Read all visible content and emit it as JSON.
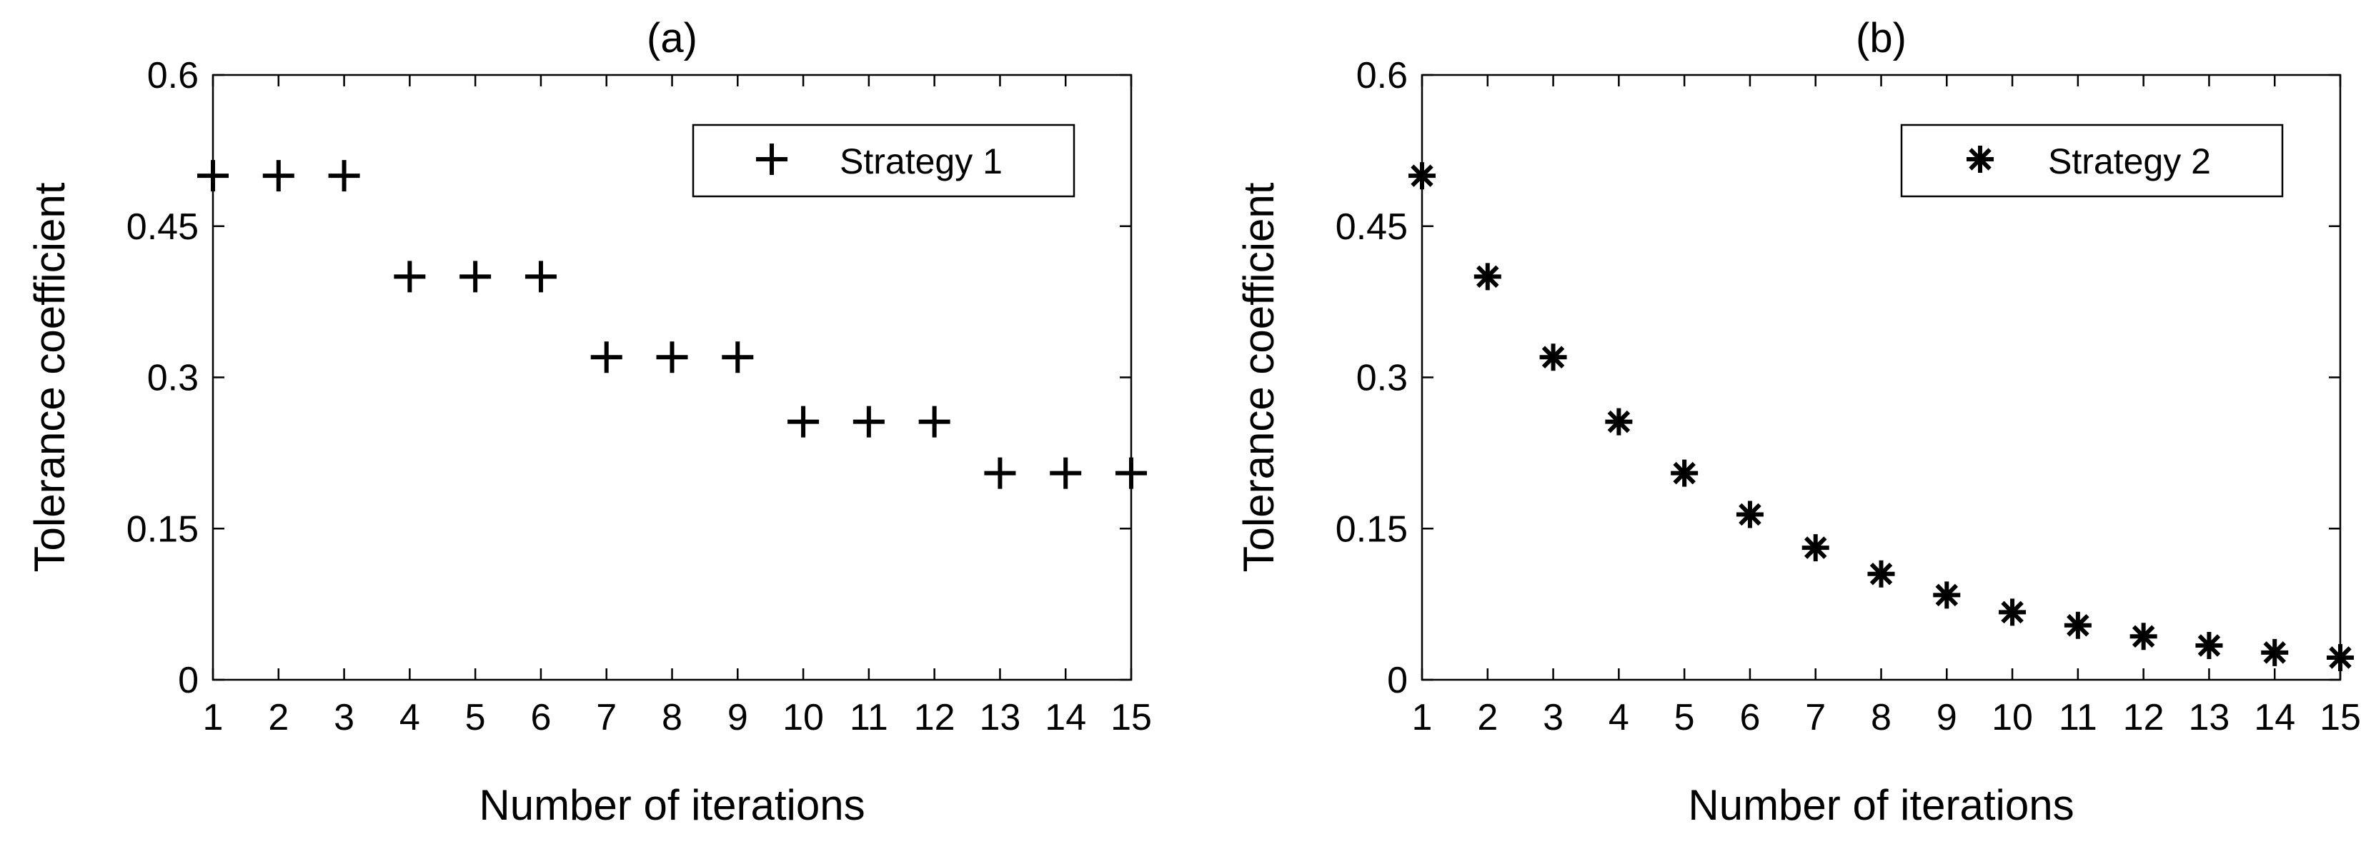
{
  "chart_data": [
    {
      "type": "scatter",
      "title": "(a)",
      "xlabel": "Number of iterations",
      "ylabel": "Tolerance coefficient",
      "xlim": [
        1,
        15
      ],
      "ylim": [
        0,
        0.6
      ],
      "xticks": [
        1,
        2,
        3,
        4,
        5,
        6,
        7,
        8,
        9,
        10,
        11,
        12,
        13,
        14,
        15
      ],
      "xticklabels": [
        "1",
        "2",
        "3",
        "4",
        "5",
        "6",
        "7",
        "8",
        "9",
        "10",
        "11",
        "12",
        "13",
        "14",
        "15"
      ],
      "yticks": [
        0,
        0.15,
        0.3,
        0.45,
        0.6
      ],
      "yticklabels": [
        "0",
        "0.15",
        "0.3",
        "0.45",
        "0.6"
      ],
      "grid": false,
      "legend_position": "top-right",
      "series": [
        {
          "name": "Strategy 1",
          "marker": "plus",
          "color": "#000000",
          "x": [
            1,
            2,
            3,
            4,
            5,
            6,
            7,
            8,
            9,
            10,
            11,
            12,
            13,
            14,
            15
          ],
          "y": [
            0.5,
            0.5,
            0.5,
            0.4,
            0.4,
            0.4,
            0.32,
            0.32,
            0.32,
            0.256,
            0.256,
            0.256,
            0.205,
            0.205,
            0.205
          ]
        }
      ]
    },
    {
      "type": "scatter",
      "title": "(b)",
      "xlabel": "Number of iterations",
      "ylabel": "Tolerance coefficient",
      "xlim": [
        1,
        15
      ],
      "ylim": [
        0,
        0.6
      ],
      "xticks": [
        1,
        2,
        3,
        4,
        5,
        6,
        7,
        8,
        9,
        10,
        11,
        12,
        13,
        14,
        15
      ],
      "xticklabels": [
        "1",
        "2",
        "3",
        "4",
        "5",
        "6",
        "7",
        "8",
        "9",
        "10",
        "11",
        "12",
        "13",
        "14",
        "15"
      ],
      "yticks": [
        0,
        0.15,
        0.3,
        0.45,
        0.6
      ],
      "yticklabels": [
        "0",
        "0.15",
        "0.3",
        "0.45",
        "0.6"
      ],
      "grid": false,
      "legend_position": "top-right",
      "series": [
        {
          "name": "Strategy 2",
          "marker": "asterisk",
          "color": "#000000",
          "x": [
            1,
            2,
            3,
            4,
            5,
            6,
            7,
            8,
            9,
            10,
            11,
            12,
            13,
            14,
            15
          ],
          "y": [
            0.5,
            0.4,
            0.32,
            0.256,
            0.205,
            0.164,
            0.131,
            0.105,
            0.084,
            0.067,
            0.054,
            0.043,
            0.034,
            0.027,
            0.022
          ]
        }
      ]
    }
  ]
}
